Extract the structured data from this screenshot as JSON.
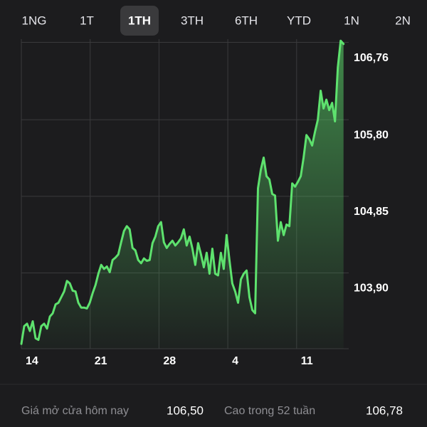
{
  "tabs": [
    "1NG",
    "1T",
    "1TH",
    "3TH",
    "6TH",
    "YTD",
    "1N",
    "2N"
  ],
  "selected_tab": 2,
  "chart_data": {
    "type": "line",
    "color": "#5ee26e",
    "x": [
      0,
      0.29,
      0.58,
      0.87,
      1.16,
      1.45,
      1.74,
      2.03,
      2.32,
      2.61,
      2.9,
      3.19,
      3.48,
      3.77,
      4.06,
      4.35,
      4.64,
      4.93,
      5.22,
      5.51,
      5.8,
      6.09,
      6.38,
      6.67,
      6.96,
      7.25,
      7.54,
      7.83,
      8.12,
      8.41,
      8.7,
      8.99,
      9.28,
      9.57,
      9.86,
      10.15,
      10.44,
      10.73,
      11.02,
      11.31,
      11.6,
      11.89,
      12.18,
      12.47,
      12.76,
      13.05,
      13.34,
      13.63,
      13.92,
      14.21,
      14.5,
      14.79,
      15.08,
      15.37,
      15.66,
      15.95,
      16.24,
      16.53,
      16.82,
      17.11,
      17.4,
      17.69,
      17.98,
      18.27,
      18.56,
      18.85,
      19.14,
      19.43,
      19.72,
      20.01,
      20.3,
      20.59,
      20.88,
      21.17,
      21.46,
      21.75,
      22.04,
      22.33,
      22.62,
      22.91,
      23.2,
      23.49,
      23.78,
      24.07,
      24.36,
      24.65,
      24.94,
      25.23,
      25.52,
      25.81,
      26.1,
      26.39,
      26.68,
      26.97,
      27.26,
      27.55,
      27.84,
      28.13,
      28.42,
      28.71,
      29,
      29.29,
      29.58,
      29.87,
      30.16,
      30.45,
      30.74,
      31.03,
      31.32,
      31.61,
      31.9,
      32.19,
      32.48,
      32.77
    ],
    "values": [
      103.02,
      103.24,
      103.27,
      103.18,
      103.3,
      103.09,
      103.07,
      103.24,
      103.27,
      103.21,
      103.36,
      103.4,
      103.51,
      103.53,
      103.6,
      103.67,
      103.8,
      103.77,
      103.68,
      103.67,
      103.53,
      103.47,
      103.47,
      103.46,
      103.53,
      103.65,
      103.75,
      103.89,
      104.0,
      103.95,
      103.98,
      103.91,
      104.06,
      104.09,
      104.13,
      104.28,
      104.42,
      104.48,
      104.44,
      104.21,
      104.18,
      104.06,
      104.02,
      104.08,
      104.05,
      104.06,
      104.27,
      104.35,
      104.48,
      104.53,
      104.28,
      104.21,
      104.26,
      104.3,
      104.24,
      104.28,
      104.33,
      104.44,
      104.24,
      104.35,
      104.2,
      104.0,
      104.27,
      104.13,
      103.97,
      104.15,
      103.89,
      104.2,
      103.89,
      103.87,
      104.15,
      103.95,
      104.37,
      104.06,
      103.77,
      103.67,
      103.53,
      103.82,
      103.89,
      103.93,
      103.6,
      103.44,
      103.4,
      104.95,
      105.18,
      105.33,
      105.1,
      105.06,
      104.88,
      104.86,
      104.3,
      104.53,
      104.37,
      104.5,
      104.48,
      105.01,
      104.97,
      105.03,
      105.1,
      105.33,
      105.61,
      105.56,
      105.48,
      105.65,
      105.8,
      106.16,
      105.94,
      106.05,
      105.92,
      106.01,
      105.78,
      106.45,
      106.78,
      106.74
    ],
    "xlim": [
      0,
      33.3
    ],
    "xticks": [
      {
        "value": 0,
        "label": "14"
      },
      {
        "value": 7,
        "label": "21"
      },
      {
        "value": 14,
        "label": "28"
      },
      {
        "value": 21,
        "label": "4"
      },
      {
        "value": 28,
        "label": "11"
      }
    ],
    "ylim": [
      102.96,
      106.8
    ],
    "yticks": [
      {
        "value": 106.76,
        "label": "106,76"
      },
      {
        "value": 105.8,
        "label": "105,80"
      },
      {
        "value": 104.85,
        "label": "104,85"
      },
      {
        "value": 103.9,
        "label": "103,90"
      }
    ],
    "grid": true
  },
  "stats": [
    {
      "label": "Giá mở cửa hôm nay",
      "value": "106,50"
    },
    {
      "label": "Cao trong 52 tuần",
      "value": "106,78"
    }
  ]
}
